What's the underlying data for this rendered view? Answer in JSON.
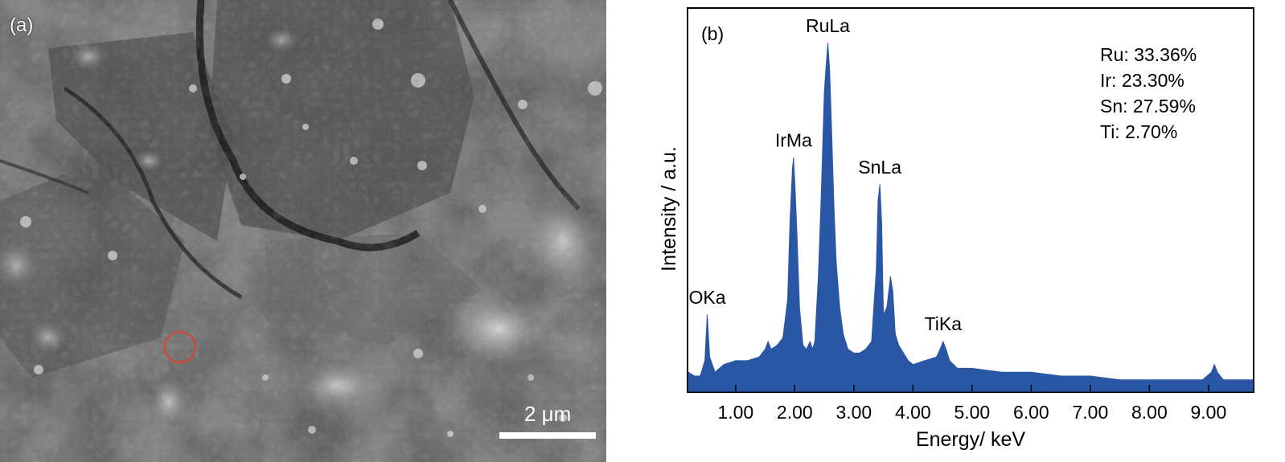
{
  "panel_a": {
    "label": "(a)",
    "scale_bar_label": "2 μm"
  },
  "chart_data": {
    "type": "line",
    "panel_label": "(b)",
    "title": "",
    "xlabel": "Energy/ keV",
    "ylabel": "Intensity / a.u.",
    "xlim": [
      0.2,
      9.75
    ],
    "ylim": [
      0,
      100
    ],
    "xticks": [
      "1.00",
      "2.00",
      "3.00",
      "4.00",
      "5.00",
      "6.00",
      "7.00",
      "8.00",
      "9.00"
    ],
    "composition": [
      "Ru: 33.36%",
      "Ir: 23.30%",
      "Sn: 27.59%",
      "Ti: 2.70%"
    ],
    "peaks": [
      {
        "label": "OKa",
        "x": 0.52,
        "y": 20
      },
      {
        "label": "IrMa",
        "x": 1.98,
        "y": 61
      },
      {
        "label": "RuLa",
        "x": 2.56,
        "y": 91
      },
      {
        "label": "SnLa",
        "x": 3.44,
        "y": 54
      },
      {
        "label": "TiKa",
        "x": 4.51,
        "y": 13
      }
    ],
    "series": [
      {
        "color": "#2a56a6",
        "x": [
          0.2,
          0.3,
          0.4,
          0.48,
          0.52,
          0.56,
          0.65,
          0.8,
          1.0,
          1.2,
          1.4,
          1.5,
          1.55,
          1.6,
          1.7,
          1.8,
          1.88,
          1.92,
          1.96,
          1.98,
          2.0,
          2.04,
          2.08,
          2.14,
          2.2,
          2.26,
          2.3,
          2.34,
          2.4,
          2.45,
          2.5,
          2.53,
          2.56,
          2.59,
          2.62,
          2.66,
          2.7,
          2.76,
          2.82,
          2.9,
          3.0,
          3.1,
          3.2,
          3.3,
          3.38,
          3.41,
          3.44,
          3.47,
          3.5,
          3.56,
          3.62,
          3.66,
          3.7,
          3.76,
          3.84,
          3.92,
          4.0,
          4.2,
          4.4,
          4.46,
          4.51,
          4.56,
          4.62,
          4.75,
          5.0,
          5.5,
          6.0,
          6.5,
          7.0,
          7.5,
          8.0,
          8.5,
          8.9,
          9.05,
          9.1,
          9.15,
          9.25,
          9.5,
          9.75
        ],
        "values": [
          5,
          4,
          4,
          8,
          20,
          9,
          5,
          7,
          8,
          8,
          9,
          11,
          13,
          11,
          12,
          14,
          24,
          44,
          58,
          61,
          55,
          40,
          22,
          12,
          11,
          13,
          11,
          13,
          30,
          52,
          78,
          85,
          91,
          84,
          70,
          50,
          34,
          22,
          15,
          11,
          10,
          10,
          11,
          13,
          32,
          50,
          54,
          44,
          20,
          22,
          30,
          26,
          15,
          12,
          10,
          8,
          7,
          8,
          9,
          11,
          13,
          11,
          8,
          6,
          6,
          5,
          5,
          4,
          4,
          3,
          3,
          3,
          3,
          5,
          7,
          5,
          3,
          3,
          3
        ]
      }
    ]
  }
}
